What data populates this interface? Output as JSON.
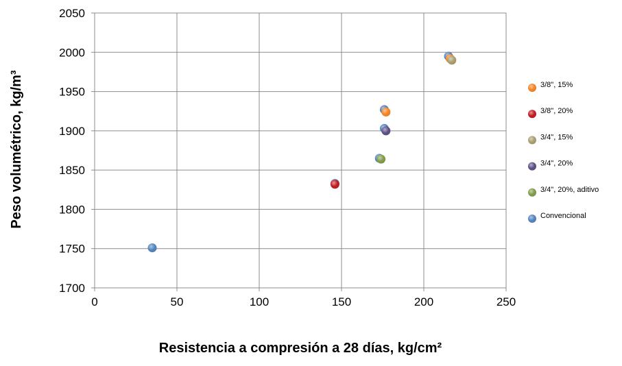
{
  "chart_data": {
    "type": "scatter",
    "title": "",
    "xlabel": "Resistencia a compresión a 28 días, kg/cm²",
    "ylabel": "Peso volumétrico, kg/m³",
    "xlim": [
      0,
      250
    ],
    "ylim": [
      1700,
      2050
    ],
    "xticks": [
      0,
      50,
      100,
      150,
      200,
      250
    ],
    "yticks": [
      1700,
      1750,
      1800,
      1850,
      1900,
      1950,
      2000,
      2050
    ],
    "grid": true,
    "legend_position": "right",
    "series": [
      {
        "name": "3/8\", 15%",
        "color": "#F58220",
        "points": [
          {
            "x": 177,
            "y": 1924
          },
          {
            "x": 216,
            "y": 1992
          }
        ]
      },
      {
        "name": "3/8\", 20%",
        "color": "#C0181F",
        "points": [
          {
            "x": 146,
            "y": 1832
          }
        ]
      },
      {
        "name": "3/4\", 15%",
        "color": "#A89C6C",
        "points": [
          {
            "x": 217,
            "y": 1990
          }
        ]
      },
      {
        "name": "3/4\", 20%",
        "color": "#5A4E82",
        "points": [
          {
            "x": 177,
            "y": 1900
          }
        ]
      },
      {
        "name": "3/4\", 20%, aditivo",
        "color": "#7D9A48",
        "points": [
          {
            "x": 174,
            "y": 1864
          }
        ]
      },
      {
        "name": "Convencional",
        "color": "#4F81BD",
        "points": [
          {
            "x": 35,
            "y": 1751
          },
          {
            "x": 146,
            "y": 1833
          },
          {
            "x": 173,
            "y": 1865
          },
          {
            "x": 176,
            "y": 1903
          },
          {
            "x": 176,
            "y": 1927
          },
          {
            "x": 215,
            "y": 1995
          }
        ]
      }
    ]
  }
}
